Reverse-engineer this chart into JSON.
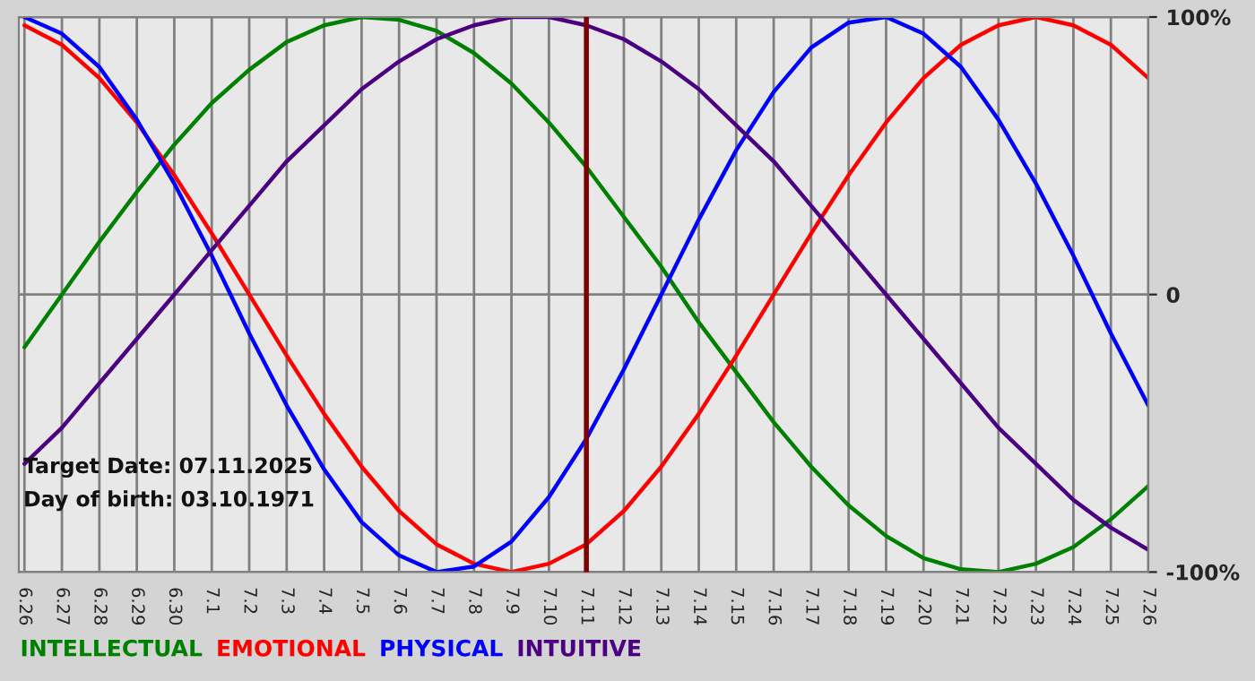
{
  "chart_data": {
    "type": "line",
    "categories": [
      "6.26",
      "6.27",
      "6.28",
      "6.29",
      "6.30",
      "7.1",
      "7.2",
      "7.3",
      "7.4",
      "7.5",
      "7.6",
      "7.7",
      "7.8",
      "7.9",
      "7.10",
      "7.11",
      "7.12",
      "7.13",
      "7.14",
      "7.15",
      "7.16",
      "7.17",
      "7.18",
      "7.19",
      "7.20",
      "7.21",
      "7.22",
      "7.23",
      "7.24",
      "7.25",
      "7.26"
    ],
    "series": [
      {
        "name": "INTELLECTUAL",
        "color": "#008000",
        "values": [
          -19,
          0,
          19,
          37,
          54,
          69,
          81,
          91,
          97,
          100,
          99,
          95,
          87,
          76,
          62,
          46,
          28,
          10,
          -10,
          -28,
          -46,
          -62,
          -76,
          -87,
          -95,
          -99,
          -100,
          -97,
          -91,
          -81,
          -69
        ]
      },
      {
        "name": "EMOTIONAL",
        "color": "#ff0000",
        "values": [
          97,
          90,
          78,
          62,
          43,
          22,
          0,
          -22,
          -43,
          -62,
          -78,
          -90,
          -97,
          -100,
          -97,
          -90,
          -78,
          -62,
          -43,
          -22,
          0,
          22,
          43,
          62,
          78,
          90,
          97,
          100,
          97,
          90,
          78
        ]
      },
      {
        "name": "PHYSICAL",
        "color": "#0000ff",
        "values": [
          100,
          94,
          82,
          63,
          40,
          14,
          -14,
          -40,
          -63,
          -82,
          -94,
          -100,
          -98,
          -89,
          -73,
          -52,
          -27,
          0,
          27,
          52,
          73,
          89,
          98,
          100,
          94,
          82,
          63,
          40,
          14,
          -14,
          -40
        ]
      },
      {
        "name": "INTUITIVE",
        "color": "#4b0082",
        "values": [
          -61,
          -48,
          -32,
          -16,
          0,
          16,
          32,
          48,
          61,
          74,
          84,
          92,
          97,
          100,
          100,
          97,
          92,
          84,
          74,
          61,
          48,
          32,
          16,
          0,
          -16,
          -32,
          -48,
          -61,
          -74,
          -84,
          -92
        ]
      }
    ],
    "ylim": [
      -100,
      100
    ],
    "yticks": [
      {
        "value": 100,
        "label": "100%"
      },
      0,
      {
        "value": -100,
        "label": "-100%"
      }
    ],
    "ref_lines": [
      {
        "axis": "x",
        "value": "7.11",
        "color": "#800000"
      }
    ],
    "annotations": [
      "Target Date: 07.11.2025",
      "Day of birth: 03.10.1971"
    ],
    "grid": true,
    "legend": "bottom",
    "marker": "none",
    "line_style": "solid"
  }
}
